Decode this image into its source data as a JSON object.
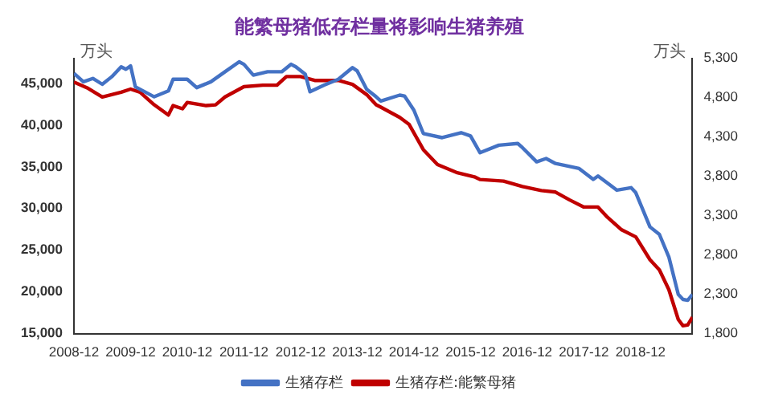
{
  "chart_data": {
    "type": "line",
    "title": "能繁母猪低存栏量将影响生猪养殖",
    "ylabel": "万头",
    "y2label": "万头",
    "xlim": [
      "2008-12",
      "2019-11"
    ],
    "xticks": [
      "2008-12",
      "2009-12",
      "2010-12",
      "2011-12",
      "2012-12",
      "2013-12",
      "2014-12",
      "2015-12",
      "2016-12",
      "2017-12",
      "2018-12"
    ],
    "ylim": [
      15000,
      48000
    ],
    "yticks": [
      {
        "value": 15000,
        "label": "15,000"
      },
      {
        "value": 20000,
        "label": "20,000"
      },
      {
        "value": 25000,
        "label": "25,000"
      },
      {
        "value": 30000,
        "label": "30,000"
      },
      {
        "value": 35000,
        "label": "35,000"
      },
      {
        "value": 40000,
        "label": "40,000"
      },
      {
        "value": 45000,
        "label": "45,000"
      }
    ],
    "y2lim": [
      1800,
      5300
    ],
    "y2ticks": [
      {
        "value": 1800,
        "label": "1,800"
      },
      {
        "value": 2300,
        "label": "2,300"
      },
      {
        "value": 2800,
        "label": "2,800"
      },
      {
        "value": 3300,
        "label": "3,300"
      },
      {
        "value": 3800,
        "label": "3,800"
      },
      {
        "value": 4300,
        "label": "4,300"
      },
      {
        "value": 4800,
        "label": "4,800"
      },
      {
        "value": 5300,
        "label": "5,300"
      }
    ],
    "grid": false,
    "legend": "bottom",
    "marker": "none",
    "line_style": "solid",
    "series": [
      {
        "name": "生猪存栏",
        "color": "#4472c4",
        "x": [
          "2008-12",
          "2009-02",
          "2009-04",
          "2009-06",
          "2009-08",
          "2009-10",
          "2009-11",
          "2009-12",
          "2010-01",
          "2010-03",
          "2010-05",
          "2010-08",
          "2010-09",
          "2010-12",
          "2011-02",
          "2011-05",
          "2011-08",
          "2011-11",
          "2011-12",
          "2012-02",
          "2012-05",
          "2012-08",
          "2012-10",
          "2012-11",
          "2013-01",
          "2013-02",
          "2013-05",
          "2013-08",
          "2013-11",
          "2013-12",
          "2014-02",
          "2014-04",
          "2014-05",
          "2014-09",
          "2014-10",
          "2014-12",
          "2015-02",
          "2015-06",
          "2015-10",
          "2015-12",
          "2016-02",
          "2016-06",
          "2016-10",
          "2016-11",
          "2017-02",
          "2017-04",
          "2017-06",
          "2017-11",
          "2018-02",
          "2018-03",
          "2018-07",
          "2018-10",
          "2018-11",
          "2019-02",
          "2019-04",
          "2019-06",
          "2019-08",
          "2019-09",
          "2019-10",
          "2019-11"
        ],
        "values": [
          46200,
          45200,
          45600,
          44900,
          45800,
          47000,
          46700,
          47100,
          44600,
          44000,
          43400,
          44100,
          45500,
          45500,
          44500,
          45200,
          46400,
          47600,
          47300,
          46000,
          46400,
          46400,
          47300,
          47000,
          46100,
          44000,
          44800,
          45500,
          46900,
          46500,
          44300,
          43400,
          42900,
          43600,
          43500,
          41800,
          39000,
          38500,
          39100,
          38700,
          36700,
          37600,
          37800,
          37300,
          35600,
          36000,
          35400,
          34800,
          33500,
          33900,
          32200,
          32500,
          31900,
          27800,
          26900,
          24200,
          19700,
          19100,
          19000,
          19700
        ]
      },
      {
        "name": "生猪存栏:能繁母猪",
        "color": "#c00000",
        "axis": "y2",
        "x": [
          "2008-12",
          "2009-03",
          "2009-06",
          "2009-10",
          "2009-12",
          "2010-02",
          "2010-05",
          "2010-08",
          "2010-09",
          "2010-11",
          "2010-12",
          "2011-04",
          "2011-06",
          "2011-08",
          "2011-12",
          "2012-04",
          "2012-07",
          "2012-09",
          "2012-12",
          "2013-03",
          "2013-08",
          "2013-11",
          "2014-02",
          "2014-04",
          "2014-05",
          "2014-09",
          "2014-11",
          "2015-02",
          "2015-05",
          "2015-09",
          "2016-01",
          "2016-02",
          "2016-07",
          "2016-11",
          "2017-03",
          "2017-06",
          "2017-09",
          "2017-12",
          "2018-03",
          "2018-05",
          "2018-08",
          "2018-11",
          "2019-02",
          "2019-04",
          "2019-06",
          "2019-08",
          "2019-09",
          "2019-10",
          "2019-11"
        ],
        "values": [
          5000,
          4920,
          4810,
          4870,
          4910,
          4870,
          4710,
          4580,
          4700,
          4660,
          4740,
          4700,
          4710,
          4810,
          4940,
          4960,
          4960,
          5070,
          5070,
          5020,
          5020,
          4970,
          4840,
          4710,
          4680,
          4550,
          4460,
          4140,
          3950,
          3850,
          3790,
          3760,
          3740,
          3670,
          3620,
          3600,
          3500,
          3410,
          3410,
          3280,
          3120,
          3030,
          2740,
          2610,
          2360,
          1980,
          1900,
          1910,
          2010
        ]
      }
    ]
  }
}
